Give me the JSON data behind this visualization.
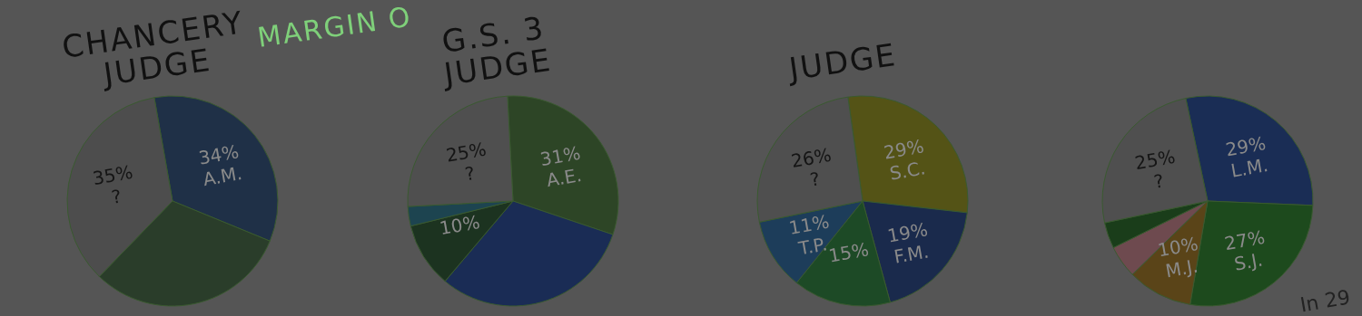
{
  "chart_data": [
    {
      "type": "pie",
      "title": "CHANCERY\nJUDGE",
      "annotations": [
        "MARGIN O"
      ],
      "categories": [
        "A.M.",
        null,
        "?"
      ],
      "values": [
        34,
        31,
        35
      ],
      "colors": [
        "#1f3047",
        "#2a3d2a",
        "#4d4d4d"
      ],
      "value_labels": [
        "34%",
        null,
        "35%"
      ]
    },
    {
      "type": "pie",
      "title": "G.S. 3\nJUDGE",
      "categories": [
        "A.E.",
        null,
        null,
        null,
        "?"
      ],
      "values": [
        31,
        31,
        10,
        3,
        25
      ],
      "colors": [
        "#2d4526",
        "#1a2c55",
        "#1c3320",
        "#1d4450",
        "#4f4f4f"
      ],
      "value_labels": [
        "31%",
        null,
        "10%",
        null,
        "25%"
      ]
    },
    {
      "type": "pie",
      "title": "JUDGE",
      "categories": [
        "S.C.",
        "F.M.",
        null,
        "T.P.",
        "?"
      ],
      "values": [
        29,
        19,
        15,
        11,
        26
      ],
      "colors": [
        "#545316",
        "#1a2a4c",
        "#1d4a26",
        "#1d3d5a",
        "#4f4f4f"
      ],
      "value_labels": [
        "29%",
        "19%",
        "15%",
        "11%",
        "26%"
      ]
    },
    {
      "type": "pie",
      "annotations": [
        "In 29"
      ],
      "categories": [
        "L.M.",
        "S.J.",
        "M.J.",
        null,
        null,
        "?"
      ],
      "values": [
        29,
        27,
        10,
        5,
        4,
        25
      ],
      "colors": [
        "#1a2d55",
        "#1d4a1d",
        "#5a4418",
        "#6e4a4f",
        "#1a3d1a",
        "#4f4f4f"
      ],
      "value_labels": [
        "29%",
        "27%",
        "10%",
        null,
        null,
        "25%"
      ]
    }
  ]
}
